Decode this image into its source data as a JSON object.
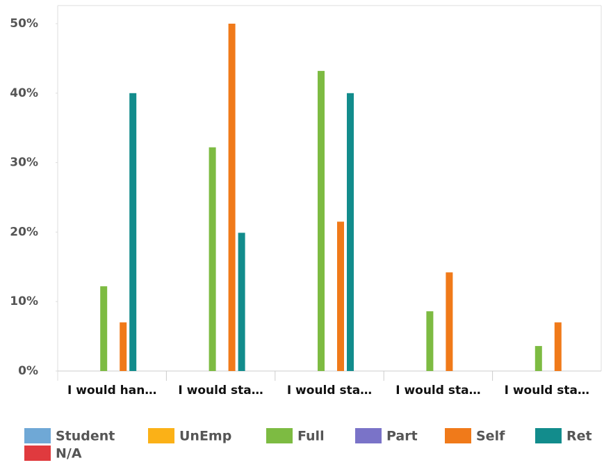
{
  "chart_data": {
    "type": "bar",
    "categories": [
      "I would han…",
      "I would sta…",
      "I would sta…",
      "I would sta…",
      "I would sta…"
    ],
    "series": [
      {
        "name": "Student",
        "color": "#6fa8d6",
        "values": [
          0,
          0,
          0,
          0,
          0
        ]
      },
      {
        "name": "UnEmp",
        "color": "#fbb117",
        "values": [
          0,
          0,
          0,
          0,
          0
        ]
      },
      {
        "name": "Full",
        "color": "#7dbb42",
        "values": [
          12.2,
          32.2,
          43.2,
          8.6,
          3.6
        ]
      },
      {
        "name": "Part",
        "color": "#7a73c8",
        "values": [
          0,
          0,
          0,
          0,
          0
        ]
      },
      {
        "name": "Self",
        "color": "#f07a1a",
        "values": [
          7,
          50,
          21.5,
          14.2,
          7
        ]
      },
      {
        "name": "Ret",
        "color": "#128c8c",
        "values": [
          40,
          19.9,
          40,
          0,
          0
        ]
      },
      {
        "name": "N/A",
        "color": "#e03a3e",
        "values": [
          0,
          0,
          0,
          0,
          0
        ]
      }
    ],
    "ylim": [
      0,
      50
    ],
    "yticks": [
      {
        "value": 0,
        "label": "0%"
      },
      {
        "value": 10,
        "label": "10%"
      },
      {
        "value": 20,
        "label": "20%"
      },
      {
        "value": 30,
        "label": "30%"
      },
      {
        "value": 40,
        "label": "40%"
      },
      {
        "value": 50,
        "label": "50%"
      }
    ],
    "legend": "bottom"
  }
}
